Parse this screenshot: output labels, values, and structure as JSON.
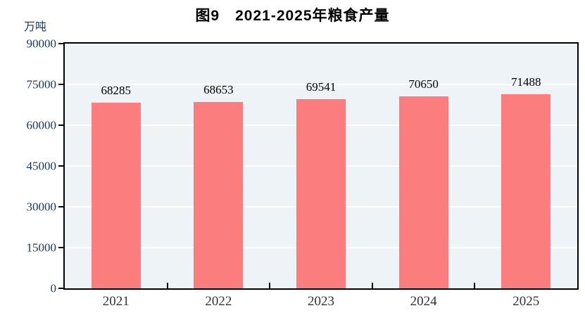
{
  "chart_data": {
    "type": "bar",
    "title": "图9　2021-2025年粮食产量",
    "unit_label": "万吨",
    "categories": [
      "2021",
      "2022",
      "2023",
      "2024",
      "2025"
    ],
    "values": [
      68285,
      68653,
      69541,
      70650,
      71488
    ],
    "xlabel": "",
    "ylabel": "万吨",
    "ylim": [
      0,
      90000
    ],
    "yticks": [
      0,
      15000,
      30000,
      45000,
      60000,
      75000,
      90000
    ],
    "grid": true,
    "legend_position": "none",
    "colors": {
      "bar": "#FC7D7D",
      "plot_background": "#EEF3F8",
      "gridline": "#FFFFFF",
      "axis": "#000000",
      "ytick_label": "#17375E",
      "data_label": "#000000",
      "xtick_label": "#333333"
    }
  }
}
